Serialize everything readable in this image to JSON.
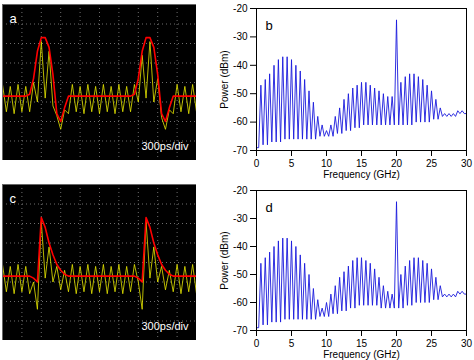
{
  "chart_data": [
    {
      "type": "line",
      "title": "a",
      "annotations": [
        "300ps/div"
      ],
      "x": [
        0,
        0.2,
        0.4,
        0.6,
        0.8,
        1,
        1.2,
        1.4,
        1.6,
        1.8,
        2,
        2.2,
        2.4,
        2.6,
        2.8,
        3,
        3.2,
        3.4,
        3.6,
        3.8,
        4,
        4.2,
        4.4,
        4.6,
        4.8,
        5,
        5.2,
        5.4,
        5.6,
        5.8,
        6,
        6.2,
        6.4,
        6.6,
        6.8,
        7,
        7.2,
        7.4,
        7.6,
        7.8,
        8,
        8.2,
        8.4,
        8.6,
        8.8,
        9,
        9.2,
        9.4,
        9.6,
        9.8,
        10
      ],
      "series": [
        {
          "color": "#e8e800",
          "values": [
            3.9,
            2.5,
            3.8,
            2.4,
            3.9,
            2.5,
            3.8,
            2.5,
            4.0,
            3.0,
            6.1,
            3.2,
            5.6,
            2.8,
            2.3,
            1.6,
            2.6,
            2.4,
            3.9,
            2.5,
            3.8,
            2.4,
            3.9,
            2.5,
            3.8,
            2.4,
            3.9,
            2.5,
            3.8,
            2.4,
            3.9,
            2.5,
            3.8,
            2.5,
            3.9,
            3.0,
            5.4,
            3.2,
            6.1,
            3.0,
            4.2,
            2.2,
            1.6,
            2.6,
            2.4,
            3.9,
            2.5,
            3.8,
            2.4,
            3.9,
            2.5
          ]
        },
        {
          "color": "#ff0000",
          "values": [
            3.3,
            3.3,
            3.3,
            3.3,
            3.3,
            3.3,
            3.3,
            3.4,
            4.2,
            5.6,
            6.3,
            6.3,
            5.8,
            4.4,
            2.4,
            2.0,
            2.7,
            3.3,
            3.3,
            3.3,
            3.3,
            3.3,
            3.3,
            3.3,
            3.3,
            3.3,
            3.3,
            3.3,
            3.3,
            3.3,
            3.3,
            3.3,
            3.3,
            3.3,
            3.4,
            4.2,
            5.6,
            6.3,
            6.3,
            5.8,
            4.4,
            2.4,
            2.0,
            2.7,
            3.3,
            3.3,
            3.3,
            3.3,
            3.3,
            3.3,
            3.3
          ]
        }
      ],
      "xlim": [
        0,
        10
      ],
      "ylim": [
        0,
        8
      ],
      "xticks": [
        0,
        1,
        2,
        3,
        4,
        5,
        6,
        7,
        8,
        9,
        10
      ],
      "yticks": [
        0,
        1,
        2,
        3,
        4,
        5,
        6,
        7,
        8
      ],
      "grid": true,
      "tick_labels": false
    },
    {
      "type": "line",
      "title": "b",
      "xlabel": "Frequency (GHz)",
      "ylabel": "Power (dBm)",
      "x": [
        0,
        0.3125,
        0.625,
        0.9375,
        1.25,
        1.5625,
        1.875,
        2.1875,
        2.5,
        2.8125,
        3.125,
        3.4375,
        3.75,
        4.0625,
        4.375,
        4.6875,
        5,
        5.3125,
        5.625,
        5.9375,
        6.25,
        6.5625,
        6.875,
        7.1875,
        7.5,
        7.8125,
        8.125,
        8.4375,
        8.75,
        9.0625,
        9.375,
        9.6875,
        10,
        10.3125,
        10.625,
        10.9375,
        11.25,
        11.5625,
        11.875,
        12.1875,
        12.5,
        12.8125,
        13.125,
        13.4375,
        13.75,
        14.0625,
        14.375,
        14.6875,
        15,
        15.3125,
        15.625,
        15.9375,
        16.25,
        16.5625,
        16.875,
        17.1875,
        17.5,
        17.8125,
        18.125,
        18.4375,
        18.75,
        19.0625,
        19.375,
        19.6875,
        20,
        20.3125,
        20.625,
        20.9375,
        21.25,
        21.5625,
        21.875,
        22.1875,
        22.5,
        22.8125,
        23.125,
        23.4375,
        23.75,
        24.0625,
        24.375,
        24.6875,
        25,
        25.3125,
        25.625,
        25.9375,
        26.25,
        26.5625,
        26.875,
        27.1875,
        27.5,
        27.8125,
        28.125,
        28.4375,
        28.75,
        29.0625,
        29.375,
        29.6875,
        30
      ],
      "series": [
        {
          "color": "#1a1adc",
          "values": [
            -69,
            -69,
            -47,
            -68,
            -45,
            -68,
            -43,
            -67,
            -40,
            -67,
            -38,
            -67,
            -37,
            -66,
            -37,
            -66,
            -38,
            -66,
            -40,
            -66,
            -42,
            -66,
            -45,
            -66,
            -49,
            -66,
            -53,
            -66,
            -58,
            -65,
            -61,
            -65,
            -63,
            -65,
            -61,
            -65,
            -58,
            -64,
            -55,
            -64,
            -52,
            -63,
            -50,
            -63,
            -48,
            -62,
            -47,
            -62,
            -46,
            -61,
            -46,
            -61,
            -47,
            -61,
            -48,
            -61,
            -49,
            -61,
            -50,
            -61,
            -51,
            -61,
            -51,
            -61,
            -24,
            -61,
            -46,
            -61,
            -44,
            -61,
            -43,
            -61,
            -43,
            -60,
            -44,
            -60,
            -45,
            -60,
            -47,
            -60,
            -49,
            -59,
            -52,
            -59,
            -55,
            -58,
            -57,
            -58,
            -57,
            -58,
            -57,
            -58,
            -56,
            -57,
            -56,
            -57,
            -57
          ]
        }
      ],
      "xlim": [
        0,
        30
      ],
      "ylim": [
        -70,
        -20
      ],
      "xticks": [
        0,
        5,
        10,
        15,
        20,
        25,
        30
      ],
      "yticks": [
        -70,
        -60,
        -50,
        -40,
        -30,
        -20
      ],
      "grid": false
    },
    {
      "type": "line",
      "title": "c",
      "annotations": [
        "300ps/div"
      ],
      "x": [
        0,
        0.2,
        0.4,
        0.6,
        0.8,
        1,
        1.2,
        1.4,
        1.6,
        1.8,
        2,
        2.2,
        2.4,
        2.6,
        2.8,
        3,
        3.2,
        3.4,
        3.6,
        3.8,
        4,
        4.2,
        4.4,
        4.6,
        4.8,
        5,
        5.2,
        5.4,
        5.6,
        5.8,
        6,
        6.2,
        6.4,
        6.6,
        6.8,
        7,
        7.2,
        7.4,
        7.6,
        7.8,
        8,
        8.2,
        8.4,
        8.6,
        8.8,
        9,
        9.2,
        9.4,
        9.6,
        9.8,
        10
      ],
      "series": [
        {
          "color": "#e8e800",
          "values": [
            3.9,
            2.5,
            3.8,
            2.4,
            3.9,
            2.5,
            3.8,
            2.4,
            3.0,
            1.6,
            6.1,
            3.2,
            4.8,
            3.0,
            3.8,
            2.6,
            3.6,
            2.5,
            3.9,
            2.4,
            3.8,
            2.5,
            3.9,
            2.4,
            3.8,
            2.5,
            3.9,
            2.4,
            3.8,
            2.5,
            3.9,
            2.4,
            3.8,
            2.5,
            3.9,
            3.0,
            1.6,
            6.1,
            3.2,
            4.8,
            3.0,
            3.8,
            2.6,
            3.6,
            2.5,
            3.9,
            2.4,
            3.8,
            2.5,
            3.9,
            2.4
          ]
        },
        {
          "color": "#ff0000",
          "values": [
            3.3,
            3.3,
            3.3,
            3.3,
            3.3,
            3.3,
            3.3,
            3.3,
            3.2,
            3.0,
            6.3,
            5.8,
            5.0,
            4.4,
            3.9,
            3.6,
            3.4,
            3.3,
            3.3,
            3.3,
            3.3,
            3.3,
            3.3,
            3.3,
            3.3,
            3.3,
            3.3,
            3.3,
            3.3,
            3.3,
            3.3,
            3.3,
            3.3,
            3.3,
            3.3,
            3.2,
            3.0,
            6.3,
            5.8,
            5.0,
            4.4,
            3.9,
            3.6,
            3.4,
            3.3,
            3.3,
            3.3,
            3.3,
            3.3,
            3.3,
            3.3
          ]
        }
      ],
      "xlim": [
        0,
        10
      ],
      "ylim": [
        0,
        8
      ],
      "xticks": [
        0,
        1,
        2,
        3,
        4,
        5,
        6,
        7,
        8,
        9,
        10
      ],
      "yticks": [
        0,
        1,
        2,
        3,
        4,
        5,
        6,
        7,
        8
      ],
      "grid": true,
      "tick_labels": false
    },
    {
      "type": "line",
      "title": "d",
      "xlabel": "Frequency (GHz)",
      "ylabel": "Power (dBm)",
      "x": [
        0,
        0.3125,
        0.625,
        0.9375,
        1.25,
        1.5625,
        1.875,
        2.1875,
        2.5,
        2.8125,
        3.125,
        3.4375,
        3.75,
        4.0625,
        4.375,
        4.6875,
        5,
        5.3125,
        5.625,
        5.9375,
        6.25,
        6.5625,
        6.875,
        7.1875,
        7.5,
        7.8125,
        8.125,
        8.4375,
        8.75,
        9.0625,
        9.375,
        9.6875,
        10,
        10.3125,
        10.625,
        10.9375,
        11.25,
        11.5625,
        11.875,
        12.1875,
        12.5,
        12.8125,
        13.125,
        13.4375,
        13.75,
        14.0625,
        14.375,
        14.6875,
        15,
        15.3125,
        15.625,
        15.9375,
        16.25,
        16.5625,
        16.875,
        17.1875,
        17.5,
        17.8125,
        18.125,
        18.4375,
        18.75,
        19.0625,
        19.375,
        19.6875,
        20,
        20.3125,
        20.625,
        20.9375,
        21.25,
        21.5625,
        21.875,
        22.1875,
        22.5,
        22.8125,
        23.125,
        23.4375,
        23.75,
        24.0625,
        24.375,
        24.6875,
        25,
        25.3125,
        25.625,
        25.9375,
        26.25,
        26.5625,
        26.875,
        27.1875,
        27.5,
        27.8125,
        28.125,
        28.4375,
        28.75,
        29.0625,
        29.375,
        29.6875,
        30
      ],
      "series": [
        {
          "color": "#1a1adc",
          "values": [
            -69,
            -69,
            -46,
            -68,
            -44,
            -68,
            -42,
            -67,
            -40,
            -67,
            -38,
            -67,
            -37,
            -66,
            -37,
            -66,
            -38,
            -66,
            -40,
            -66,
            -43,
            -66,
            -46,
            -66,
            -50,
            -66,
            -55,
            -66,
            -59,
            -65,
            -62,
            -65,
            -60,
            -65,
            -57,
            -64,
            -54,
            -64,
            -51,
            -63,
            -49,
            -63,
            -47,
            -62,
            -45,
            -62,
            -44,
            -61,
            -44,
            -61,
            -45,
            -61,
            -46,
            -61,
            -48,
            -61,
            -51,
            -62,
            -54,
            -62,
            -56,
            -62,
            -57,
            -62,
            -24,
            -62,
            -50,
            -62,
            -47,
            -61,
            -45,
            -61,
            -44,
            -60,
            -44,
            -60,
            -45,
            -60,
            -46,
            -60,
            -48,
            -59,
            -51,
            -59,
            -54,
            -58,
            -57,
            -58,
            -57,
            -58,
            -57,
            -58,
            -56,
            -57,
            -56,
            -57,
            -57
          ]
        }
      ],
      "xlim": [
        0,
        30
      ],
      "ylim": [
        -70,
        -20
      ],
      "xticks": [
        0,
        5,
        10,
        15,
        20,
        25,
        30
      ],
      "yticks": [
        -70,
        -60,
        -50,
        -40,
        -30,
        -20
      ],
      "grid": false
    }
  ]
}
